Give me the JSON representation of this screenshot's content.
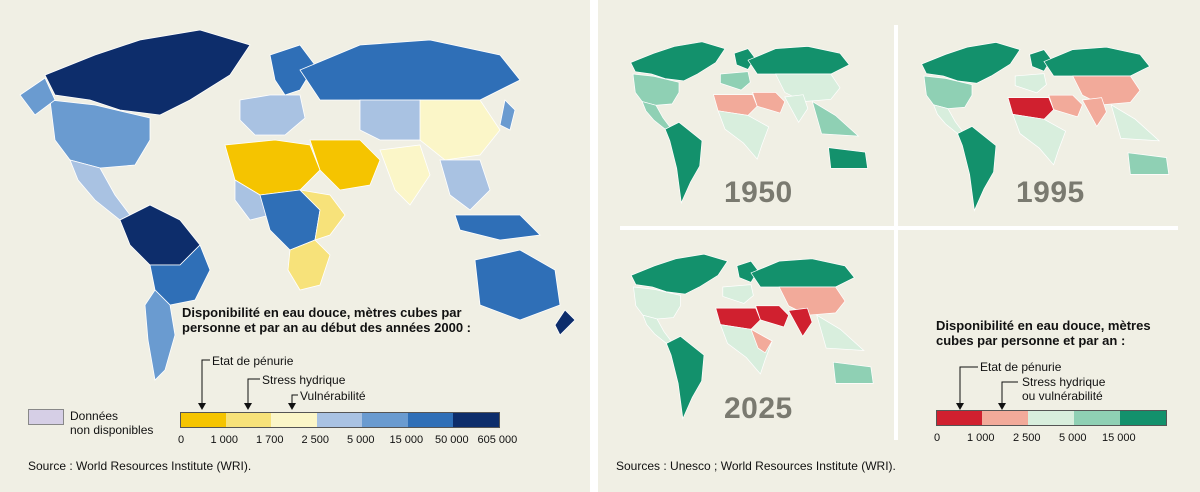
{
  "left": {
    "legend_title": [
      "Disponibilité en eau douce, mètres cubes par",
      "personne et par an au début des années 2000 :"
    ],
    "scale_colors": [
      "#f5c400",
      "#f7e27a",
      "#fbf6c8",
      "#a9c2e2",
      "#6a9bd0",
      "#2f6fb7",
      "#0d2d6b"
    ],
    "ticks": [
      "0",
      "1 000",
      "1 700",
      "2 500",
      "5 000",
      "15 000",
      "50 000",
      "605 000"
    ],
    "arrow_labels": [
      "Etat de pénurie",
      "Stress hydrique",
      "Vulnérabilité"
    ],
    "no_data_label": [
      "Données",
      "non disponibles"
    ],
    "no_data_color": "#d6cfe6",
    "source": "Source : World Resources Institute (WRI)."
  },
  "right": {
    "legend_title": [
      "Disponibilité en eau douce, mètres",
      "cubes par personne et par an :"
    ],
    "scale_colors": [
      "#d0202f",
      "#f2aa9a",
      "#d8eedd",
      "#8fd0b4",
      "#13916c"
    ],
    "ticks": [
      "0",
      "1 000",
      "2 500",
      "5 000",
      "15 000"
    ],
    "arrow_labels": [
      "Etat de pénurie",
      "Stress hydrique",
      "ou vulnérabilité"
    ],
    "years": [
      "1950",
      "1995",
      "2025"
    ],
    "source": "Sources : Unesco ; World Resources Institute (WRI)."
  }
}
